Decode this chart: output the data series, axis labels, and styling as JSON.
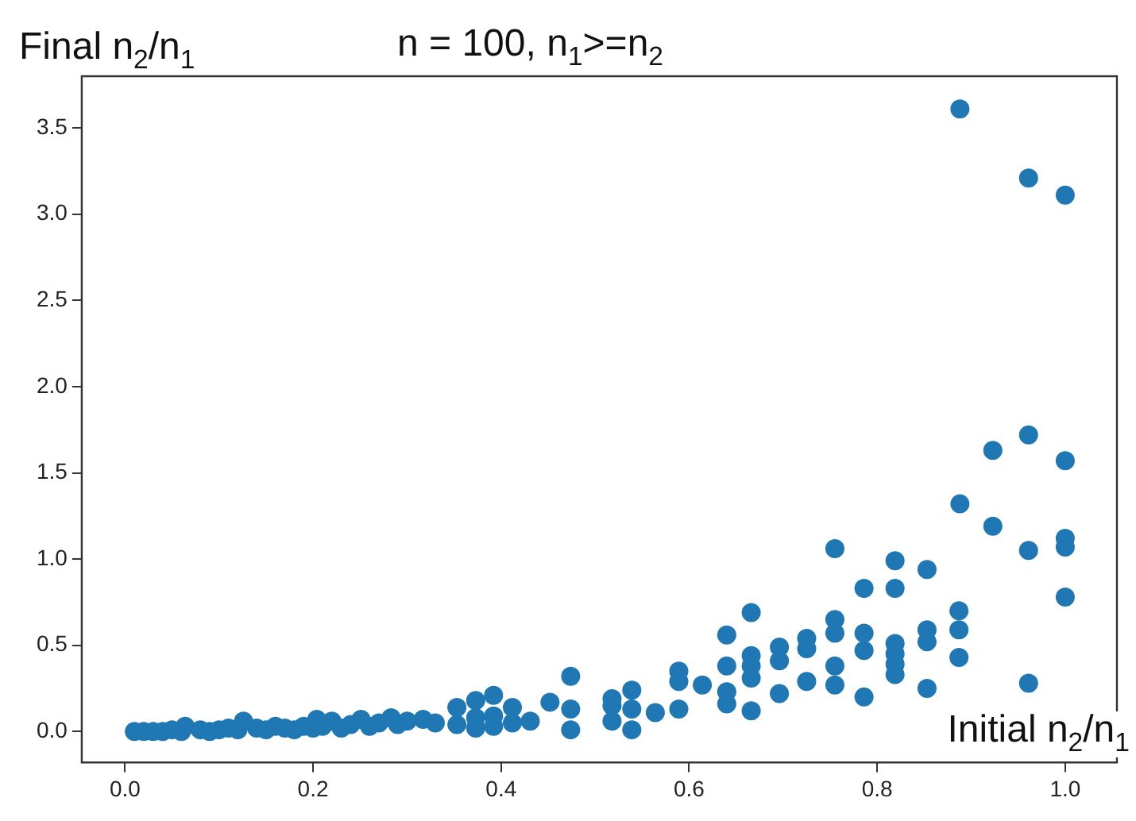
{
  "chart_data": {
    "type": "scatter",
    "title": "n = 100, n$_{1}$>=n$_{2}$",
    "xlabel": "Initial n$_{2}$/n$_{1}$",
    "ylabel": "Final n$_{2}$/n$_{1}$",
    "x": [
      0.01,
      0.02,
      0.03,
      0.04,
      0.05,
      0.06,
      0.064,
      0.08,
      0.09,
      0.1,
      0.11,
      0.12,
      0.126,
      0.14,
      0.15,
      0.16,
      0.17,
      0.18,
      0.19,
      0.2,
      0.204,
      0.21,
      0.22,
      0.23,
      0.24,
      0.251,
      0.26,
      0.27,
      0.283,
      0.29,
      0.3,
      0.317,
      0.33,
      0.353,
      0.353,
      0.373,
      0.373,
      0.373,
      0.392,
      0.392,
      0.392,
      0.412,
      0.412,
      0.431,
      0.452,
      0.474,
      0.474,
      0.474,
      0.518,
      0.518,
      0.518,
      0.539,
      0.539,
      0.539,
      0.564,
      0.589,
      0.589,
      0.589,
      0.614,
      0.64,
      0.64,
      0.64,
      0.64,
      0.666,
      0.666,
      0.666,
      0.666,
      0.666,
      0.696,
      0.696,
      0.696,
      0.725,
      0.725,
      0.725,
      0.755,
      0.755,
      0.755,
      0.755,
      0.755,
      0.786,
      0.786,
      0.786,
      0.786,
      0.819,
      0.819,
      0.819,
      0.819,
      0.819,
      0.819,
      0.853,
      0.853,
      0.853,
      0.853,
      0.887,
      0.887,
      0.887,
      0.888,
      0.888,
      0.923,
      0.923,
      0.961,
      0.961,
      0.961,
      0.961,
      1.0,
      1.0,
      1.0,
      1.0,
      1.0
    ],
    "values": [
      0.0,
      0.0,
      0.0,
      0.0,
      0.01,
      0.0,
      0.03,
      0.01,
      0.0,
      0.01,
      0.02,
      0.01,
      0.06,
      0.02,
      0.01,
      0.03,
      0.02,
      0.01,
      0.03,
      0.02,
      0.07,
      0.03,
      0.06,
      0.02,
      0.04,
      0.07,
      0.03,
      0.05,
      0.08,
      0.04,
      0.06,
      0.07,
      0.05,
      0.14,
      0.04,
      0.18,
      0.08,
      0.02,
      0.21,
      0.09,
      0.03,
      0.14,
      0.05,
      0.06,
      0.17,
      0.32,
      0.13,
      0.01,
      0.19,
      0.15,
      0.06,
      0.24,
      0.13,
      0.01,
      0.11,
      0.35,
      0.29,
      0.13,
      0.27,
      0.56,
      0.38,
      0.23,
      0.16,
      0.69,
      0.44,
      0.38,
      0.31,
      0.12,
      0.49,
      0.41,
      0.22,
      0.54,
      0.48,
      0.29,
      1.06,
      0.65,
      0.57,
      0.38,
      0.27,
      0.83,
      0.57,
      0.47,
      0.2,
      0.99,
      0.83,
      0.51,
      0.45,
      0.39,
      0.33,
      0.94,
      0.59,
      0.52,
      0.25,
      0.7,
      0.59,
      0.43,
      3.61,
      1.32,
      1.63,
      1.19,
      3.21,
      1.72,
      1.05,
      0.28,
      3.11,
      1.57,
      1.12,
      1.07,
      0.78
    ],
    "color": "#1f77b4",
    "marker": "circle",
    "grid": false,
    "legend": false,
    "xlim": [
      -0.046,
      1.055
    ],
    "ylim": [
      -0.18,
      3.8
    ],
    "xticks": [
      {
        "value": 0,
        "label": "0.0"
      },
      {
        "value": 0.2,
        "label": "0.2"
      },
      {
        "value": 0.4,
        "label": "0.4"
      },
      {
        "value": 0.6,
        "label": "0.6"
      },
      {
        "value": 0.8,
        "label": "0.8"
      },
      {
        "value": 1,
        "label": "1.0"
      }
    ],
    "yticks": [
      {
        "value": 0,
        "label": "0.0"
      },
      {
        "value": 0.5,
        "label": "0.5"
      },
      {
        "value": 1,
        "label": "1.0"
      },
      {
        "value": 1.5,
        "label": "1.5"
      },
      {
        "value": 2,
        "label": "2.0"
      },
      {
        "value": 2.5,
        "label": "2.5"
      },
      {
        "value": 3,
        "label": "3.0"
      },
      {
        "value": 3.5,
        "label": "3.5"
      }
    ]
  }
}
